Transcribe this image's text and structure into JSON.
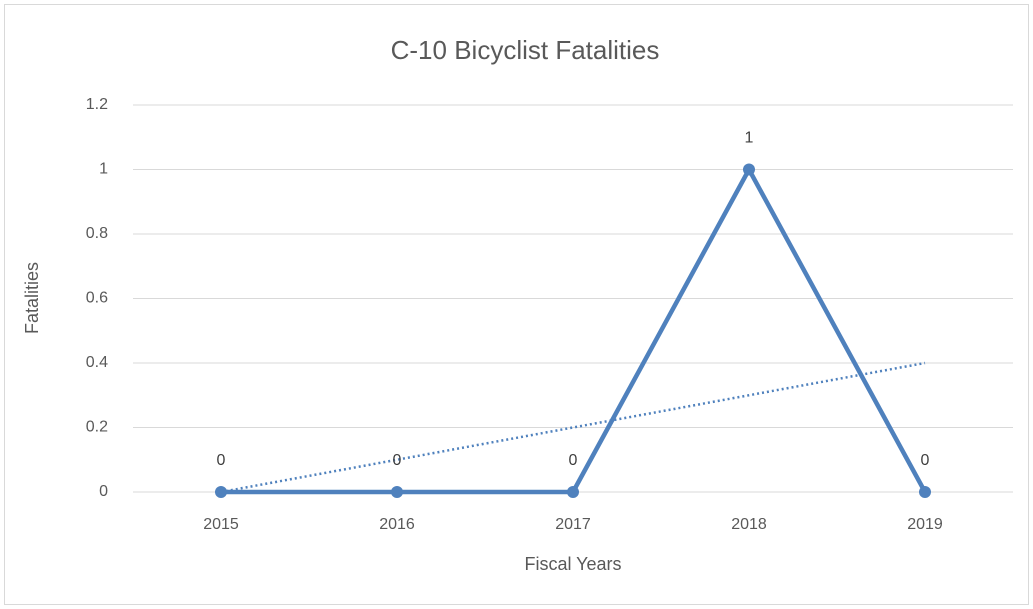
{
  "chart_data": {
    "type": "line",
    "title": "C-10 Bicyclist Fatalities",
    "x_label": "Fiscal Years",
    "y_label": "Fatalities",
    "categories": [
      "2015",
      "2016",
      "2017",
      "2018",
      "2019"
    ],
    "series": [
      {
        "color": "#4f81bd",
        "values": [
          0,
          0,
          0,
          1,
          0
        ]
      }
    ],
    "trendline": {
      "color": "#4f81bd",
      "style": "dotted",
      "values": [
        0,
        0.1,
        0.2,
        0.3,
        0.4
      ]
    },
    "ylim": [
      0,
      1.2
    ],
    "yticks": [
      0,
      0.2,
      0.4,
      0.6,
      0.8,
      1,
      1.2
    ],
    "grid": true,
    "data_labels": true
  }
}
